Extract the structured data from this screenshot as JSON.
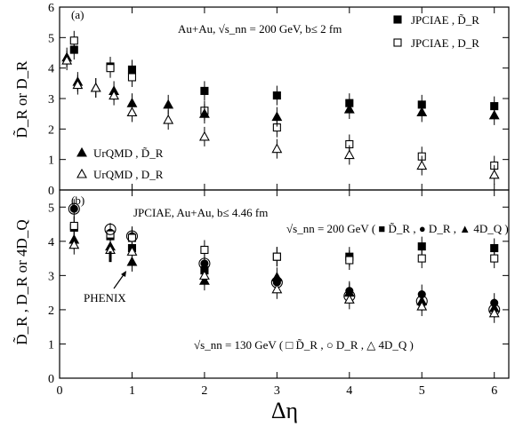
{
  "chart_data": [
    {
      "panel": "(a)",
      "type": "scatter",
      "annotation": "Au+Au, √s_nn = 200 GeV,  b≤ 2 fm",
      "ylabel": "D̃_R or D_R",
      "xlim": [
        0,
        6.2
      ],
      "ylim": [
        0,
        6
      ],
      "yticks": [
        0,
        1,
        2,
        3,
        4,
        5,
        6
      ],
      "series": [
        {
          "name": "JPCIAE , D̃_R",
          "marker": "filled-square",
          "legend": "top-right",
          "x": [
            0.2,
            0.7,
            1.0,
            2.0,
            3.0,
            4.0,
            5.0,
            6.0
          ],
          "y": [
            4.6,
            4.05,
            3.95,
            3.25,
            3.1,
            2.85,
            2.8,
            2.75
          ]
        },
        {
          "name": "JPCIAE , D_R",
          "marker": "open-square",
          "legend": "top-right",
          "x": [
            0.2,
            0.7,
            1.0,
            2.0,
            3.0,
            4.0,
            5.0,
            6.0
          ],
          "y": [
            4.9,
            4.0,
            3.7,
            2.6,
            2.05,
            1.5,
            1.1,
            0.8
          ]
        },
        {
          "name": "UrQMD , D̃_R",
          "marker": "filled-triangle",
          "legend": "bottom-left",
          "x": [
            0.1,
            0.25,
            0.5,
            0.75,
            1.0,
            1.5,
            2.0,
            3.0,
            4.0,
            5.0,
            6.0
          ],
          "y": [
            4.35,
            3.55,
            3.35,
            3.25,
            2.85,
            2.8,
            2.5,
            2.4,
            2.65,
            2.55,
            2.45
          ]
        },
        {
          "name": "UrQMD , D_R",
          "marker": "open-triangle",
          "legend": "bottom-left",
          "x": [
            0.1,
            0.25,
            0.5,
            0.75,
            1.0,
            1.5,
            2.0,
            3.0,
            4.0,
            5.0,
            6.0
          ],
          "y": [
            4.25,
            3.45,
            3.35,
            3.1,
            2.55,
            2.3,
            1.75,
            1.35,
            1.15,
            0.8,
            0.5
          ]
        }
      ]
    },
    {
      "panel": "(b)",
      "type": "scatter",
      "annotation": "JPCIAE,  Au+Au, b≤ 4.46 fm",
      "label_200": "√s_nn = 200 GeV   ( ■ D̃_R ,  ● D_R ,  ▲ 4D_Q )",
      "label_130": "√s_nn = 130 GeV  ( □ D̃_R ,  ○ D_R ,  △ 4D_Q )",
      "phenix_label": "PHENIX",
      "xlabel": "Δη",
      "ylabel": "D̃_R , D_R or 4D_Q",
      "xlim": [
        0,
        6.2
      ],
      "ylim": [
        0,
        5.5
      ],
      "xticks": [
        0,
        1,
        2,
        3,
        4,
        5,
        6
      ],
      "yticks": [
        0,
        1,
        2,
        3,
        4,
        5
      ],
      "series": [
        {
          "name": "200 GeV D̃_R",
          "marker": "filled-square",
          "x": [
            0.2,
            0.7,
            1.0,
            2.0,
            3.0,
            4.0,
            5.0,
            6.0
          ],
          "y": [
            4.4,
            4.15,
            3.8,
            3.15,
            3.55,
            3.55,
            3.85,
            3.8
          ]
        },
        {
          "name": "200 GeV D_R",
          "marker": "filled-circle",
          "x": [
            0.2,
            0.7,
            1.0,
            2.0,
            3.0,
            4.0,
            5.0,
            6.0
          ],
          "y": [
            4.95,
            4.25,
            4.15,
            3.35,
            2.8,
            2.55,
            2.45,
            2.2
          ]
        },
        {
          "name": "200 GeV 4D_Q",
          "marker": "filled-triangle",
          "x": [
            0.2,
            0.7,
            1.0,
            2.0,
            3.0,
            4.0,
            5.0,
            6.0
          ],
          "y": [
            4.05,
            3.85,
            3.4,
            2.85,
            2.95,
            2.5,
            2.25,
            2.05
          ]
        },
        {
          "name": "130 GeV D̃_R",
          "marker": "open-square",
          "x": [
            0.2,
            0.7,
            1.0,
            2.0,
            3.0,
            4.0,
            5.0,
            6.0
          ],
          "y": [
            4.45,
            4.2,
            4.1,
            3.75,
            3.55,
            3.45,
            3.5,
            3.5
          ]
        },
        {
          "name": "130 GeV D_R",
          "marker": "open-circle",
          "x": [
            0.2,
            0.7,
            1.0,
            2.0,
            3.0,
            4.0,
            5.0,
            6.0
          ],
          "y": [
            4.95,
            4.35,
            4.15,
            3.35,
            2.8,
            2.4,
            2.25,
            2.0
          ]
        },
        {
          "name": "130 GeV 4D_Q",
          "marker": "open-triangle",
          "x": [
            0.2,
            0.7,
            1.0,
            2.0,
            3.0,
            4.0,
            5.0,
            6.0
          ],
          "y": [
            3.9,
            3.75,
            3.7,
            3.0,
            2.6,
            2.3,
            2.1,
            1.9
          ]
        },
        {
          "name": "PHENIX",
          "marker": "bar",
          "x": [
            0.7
          ],
          "y": [
            3.55
          ]
        }
      ]
    }
  ]
}
